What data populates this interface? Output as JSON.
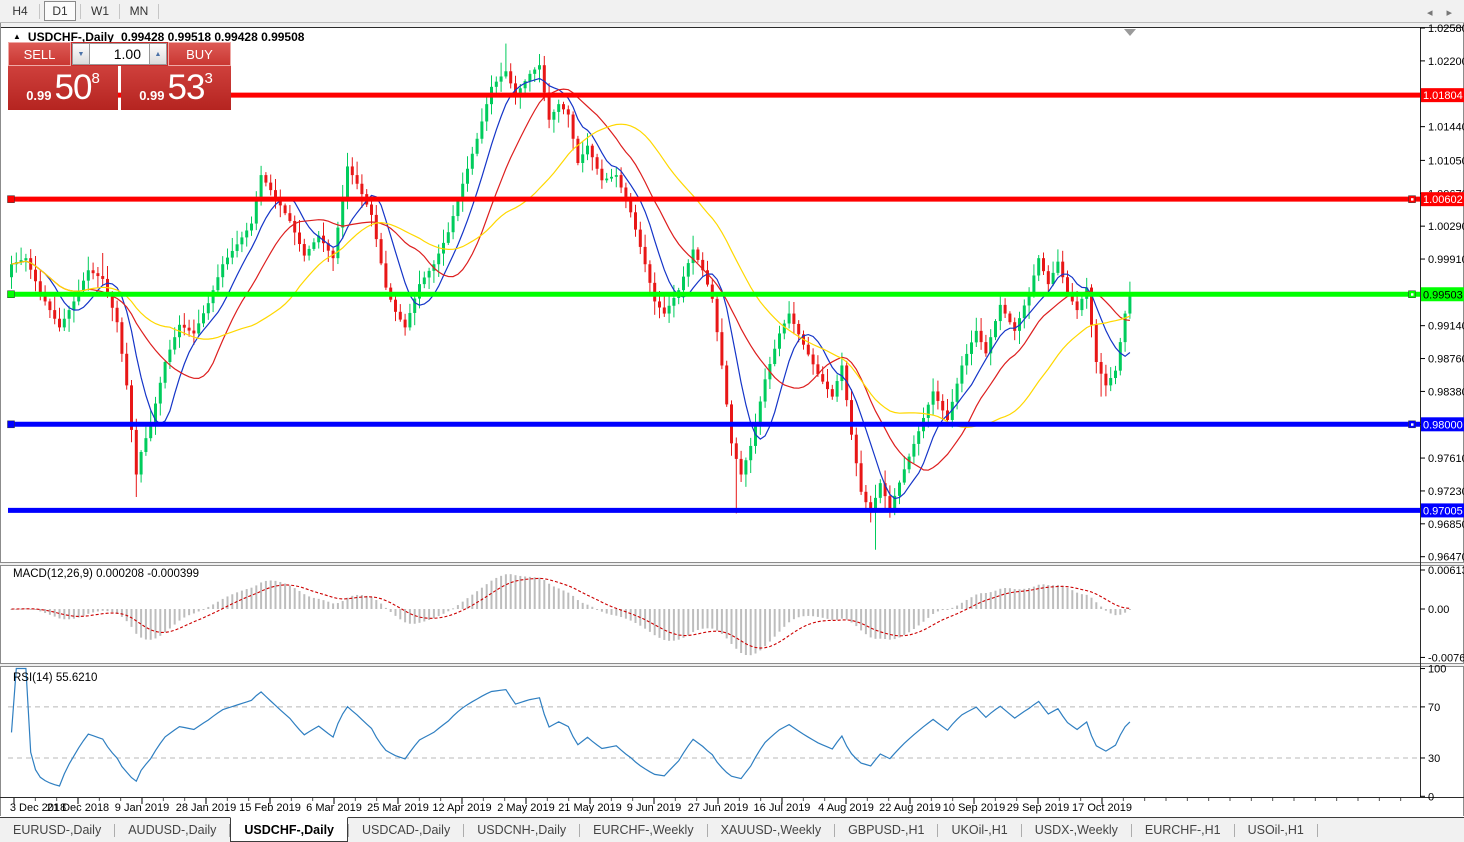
{
  "toolbar": {
    "timeframes": [
      {
        "label": "H4",
        "active": false
      },
      {
        "label": "D1",
        "active": true
      },
      {
        "label": "W1",
        "active": false
      },
      {
        "label": "MN",
        "active": false
      }
    ]
  },
  "window": {
    "title": {
      "marker": "▲",
      "symbol": "USDCHF-,Daily",
      "ohlc": "0.99428 0.99518 0.99428 0.99508"
    }
  },
  "trade_panel": {
    "sell_label": "SELL",
    "buy_label": "BUY",
    "volume": "1.00",
    "spin_down": "▼",
    "spin_up": "▲",
    "sell_price": {
      "base": "0.99",
      "big": "50",
      "sup": "8"
    },
    "buy_price": {
      "base": "0.99",
      "big": "53",
      "sup": "3"
    }
  },
  "chart_data": {
    "type": "candlestick",
    "symbol": "USDCHF-,Daily",
    "current_ohlc": {
      "open": 0.99428,
      "high": 0.99518,
      "low": 0.99428,
      "close": 0.99508
    },
    "bid": "0.99508",
    "ask": "0.99533",
    "ylim": [
      0.9647,
      1.0258
    ],
    "price_axis_ticks": [
      "1.02580",
      "1.02200",
      "1.01440",
      "1.01050",
      "1.00670",
      "1.00290",
      "0.99910",
      "0.99140",
      "0.98760",
      "0.98380",
      "0.98000",
      "0.97610",
      "0.97230",
      "0.96850",
      "0.96470"
    ],
    "hlines": [
      {
        "price": 1.01804,
        "label": "1.01804",
        "color": "#ff0000",
        "text_color": "#ffffff",
        "handles": false
      },
      {
        "price": 1.00602,
        "label": "1.00602",
        "color": "#ff0000",
        "text_color": "#ffffff",
        "handles": true
      },
      {
        "price": 0.99503,
        "label": "0.99503",
        "color": "#00ff00",
        "text_color": "#000000",
        "handles": true
      },
      {
        "price": 0.98,
        "label": "0.98000",
        "color": "#0000ff",
        "text_color": "#ffffff",
        "handles": true
      },
      {
        "price": 0.97005,
        "label": "0.97005",
        "color": "#0000ff",
        "text_color": "#ffffff",
        "handles": false
      }
    ],
    "x_labels": [
      "3 Dec 2018",
      "21 Dec 2018",
      "9 Jan 2019",
      "28 Jan 2019",
      "15 Feb 2019",
      "6 Mar 2019",
      "25 Mar 2019",
      "12 Apr 2019",
      "2 May 2019",
      "21 May 2019",
      "9 Jun 2019",
      "27 Jun 2019",
      "16 Jul 2019",
      "4 Aug 2019",
      "22 Aug 2019",
      "10 Sep 2019",
      "29 Sep 2019",
      "17 Oct 2019"
    ],
    "bar_count": 234,
    "close_anchors": [
      [
        0,
        0.9985
      ],
      [
        3,
        0.9992
      ],
      [
        6,
        0.9952
      ],
      [
        10,
        0.9912
      ],
      [
        13,
        0.9942
      ],
      [
        16,
        0.9978
      ],
      [
        19,
        0.9968
      ],
      [
        22,
        0.9918
      ],
      [
        24,
        0.9845
      ],
      [
        26,
        0.9742
      ],
      [
        27,
        0.9768
      ],
      [
        29,
        0.98
      ],
      [
        32,
        0.9872
      ],
      [
        35,
        0.9915
      ],
      [
        38,
        0.9905
      ],
      [
        41,
        0.994
      ],
      [
        44,
        0.9985
      ],
      [
        47,
        1.0008
      ],
      [
        50,
        1.0032
      ],
      [
        52,
        1.0088
      ],
      [
        55,
        1.0062
      ],
      [
        58,
        1.0035
      ],
      [
        61,
        0.9995
      ],
      [
        64,
        1.0018
      ],
      [
        67,
        0.9992
      ],
      [
        70,
        1.0098
      ],
      [
        72,
        1.0078
      ],
      [
        75,
        1.0042
      ],
      [
        78,
        0.9958
      ],
      [
        80,
        0.993
      ],
      [
        82,
        0.9912
      ],
      [
        85,
        0.9962
      ],
      [
        88,
        0.9985
      ],
      [
        91,
        1.0022
      ],
      [
        94,
        1.0078
      ],
      [
        97,
        1.013
      ],
      [
        100,
        1.019
      ],
      [
        103,
        1.0208
      ],
      [
        105,
        1.018
      ],
      [
        108,
        1.0205
      ],
      [
        110,
        1.0215
      ],
      [
        112,
        1.0152
      ],
      [
        114,
        1.017
      ],
      [
        116,
        1.0158
      ],
      [
        118,
        1.0102
      ],
      [
        120,
        1.0122
      ],
      [
        123,
        1.0082
      ],
      [
        126,
        1.0088
      ],
      [
        129,
        1.0045
      ],
      [
        132,
        0.9985
      ],
      [
        134,
        0.9942
      ],
      [
        136,
        0.9928
      ],
      [
        139,
        0.9955
      ],
      [
        142,
        1.0002
      ],
      [
        144,
        0.9978
      ],
      [
        146,
        0.9945
      ],
      [
        148,
        0.9868
      ],
      [
        150,
        0.9778
      ],
      [
        152,
        0.9742
      ],
      [
        154,
        0.9775
      ],
      [
        157,
        0.9852
      ],
      [
        160,
        0.9905
      ],
      [
        162,
        0.9928
      ],
      [
        165,
        0.9892
      ],
      [
        168,
        0.9858
      ],
      [
        171,
        0.9832
      ],
      [
        173,
        0.9868
      ],
      [
        175,
        0.9788
      ],
      [
        177,
        0.9722
      ],
      [
        179,
        0.9698
      ],
      [
        181,
        0.9732
      ],
      [
        183,
        0.9702
      ],
      [
        186,
        0.9748
      ],
      [
        189,
        0.9792
      ],
      [
        192,
        0.9838
      ],
      [
        195,
        0.9805
      ],
      [
        198,
        0.9868
      ],
      [
        201,
        0.9908
      ],
      [
        203,
        0.9882
      ],
      [
        206,
        0.9938
      ],
      [
        209,
        0.9908
      ],
      [
        212,
        0.9952
      ],
      [
        214,
        0.9992
      ],
      [
        216,
        0.9962
      ],
      [
        218,
        0.9988
      ],
      [
        220,
        0.9952
      ],
      [
        222,
        0.9932
      ],
      [
        224,
        0.9958
      ],
      [
        226,
        0.9872
      ],
      [
        228,
        0.9845
      ],
      [
        230,
        0.9862
      ],
      [
        231,
        0.9895
      ],
      [
        232,
        0.9928
      ],
      [
        233,
        0.995
      ]
    ],
    "wick_overrides": [
      {
        "i": 19,
        "high": 0.9998
      },
      {
        "i": 26,
        "low": 0.9716
      },
      {
        "i": 70,
        "high": 1.0112
      },
      {
        "i": 103,
        "high": 1.024
      },
      {
        "i": 110,
        "high": 1.0228
      },
      {
        "i": 151,
        "low": 0.9697
      },
      {
        "i": 180,
        "low": 0.9655
      },
      {
        "i": 227,
        "low": 0.9832
      }
    ],
    "moving_averages": [
      {
        "period": 8,
        "color": "#1535c8"
      },
      {
        "period": 17,
        "color": "#dd1f1f"
      },
      {
        "period": 34,
        "color": "#ffd800"
      }
    ],
    "colors": {
      "bull": "#00cc5c",
      "bear": "#e81717",
      "macd_hist": "#bdbdbd",
      "macd_signal": "#cc0000",
      "rsi": "#2f7fc1"
    },
    "macd": {
      "label": "MACD(12,26,9)",
      "values": "0.000208 -0.000399",
      "params": [
        12,
        26,
        9
      ],
      "axis_ticks": [
        {
          "label": "0.00613",
          "value": 0.00613
        },
        {
          "label": "0.00",
          "value": 0
        },
        {
          "label": "-0.007612",
          "value": -0.007612
        }
      ]
    },
    "rsi": {
      "label": "RSI(14)",
      "value": "55.6210",
      "period": 14,
      "levels": [
        70,
        30
      ],
      "axis_ticks": [
        {
          "label": "100",
          "value": 100
        },
        {
          "label": "70",
          "value": 70
        },
        {
          "label": "30",
          "value": 30
        },
        {
          "label": "0",
          "value": 0
        }
      ]
    }
  },
  "tabs": {
    "active": "USDCHF-,Daily",
    "items": [
      "EURUSD-,Daily",
      "AUDUSD-,Daily",
      "USDCHF-,Daily",
      "USDCAD-,Daily",
      "USDCNH-,Daily",
      "EURCHF-,Weekly",
      "XAUUSD-,Weekly",
      "GBPUSD-,H1",
      "UKOil-,H1",
      "USDX-,Weekly",
      "EURCHF-,H1",
      "USOil-,H1"
    ],
    "scroll_left": "◂",
    "scroll_right": "▸"
  }
}
